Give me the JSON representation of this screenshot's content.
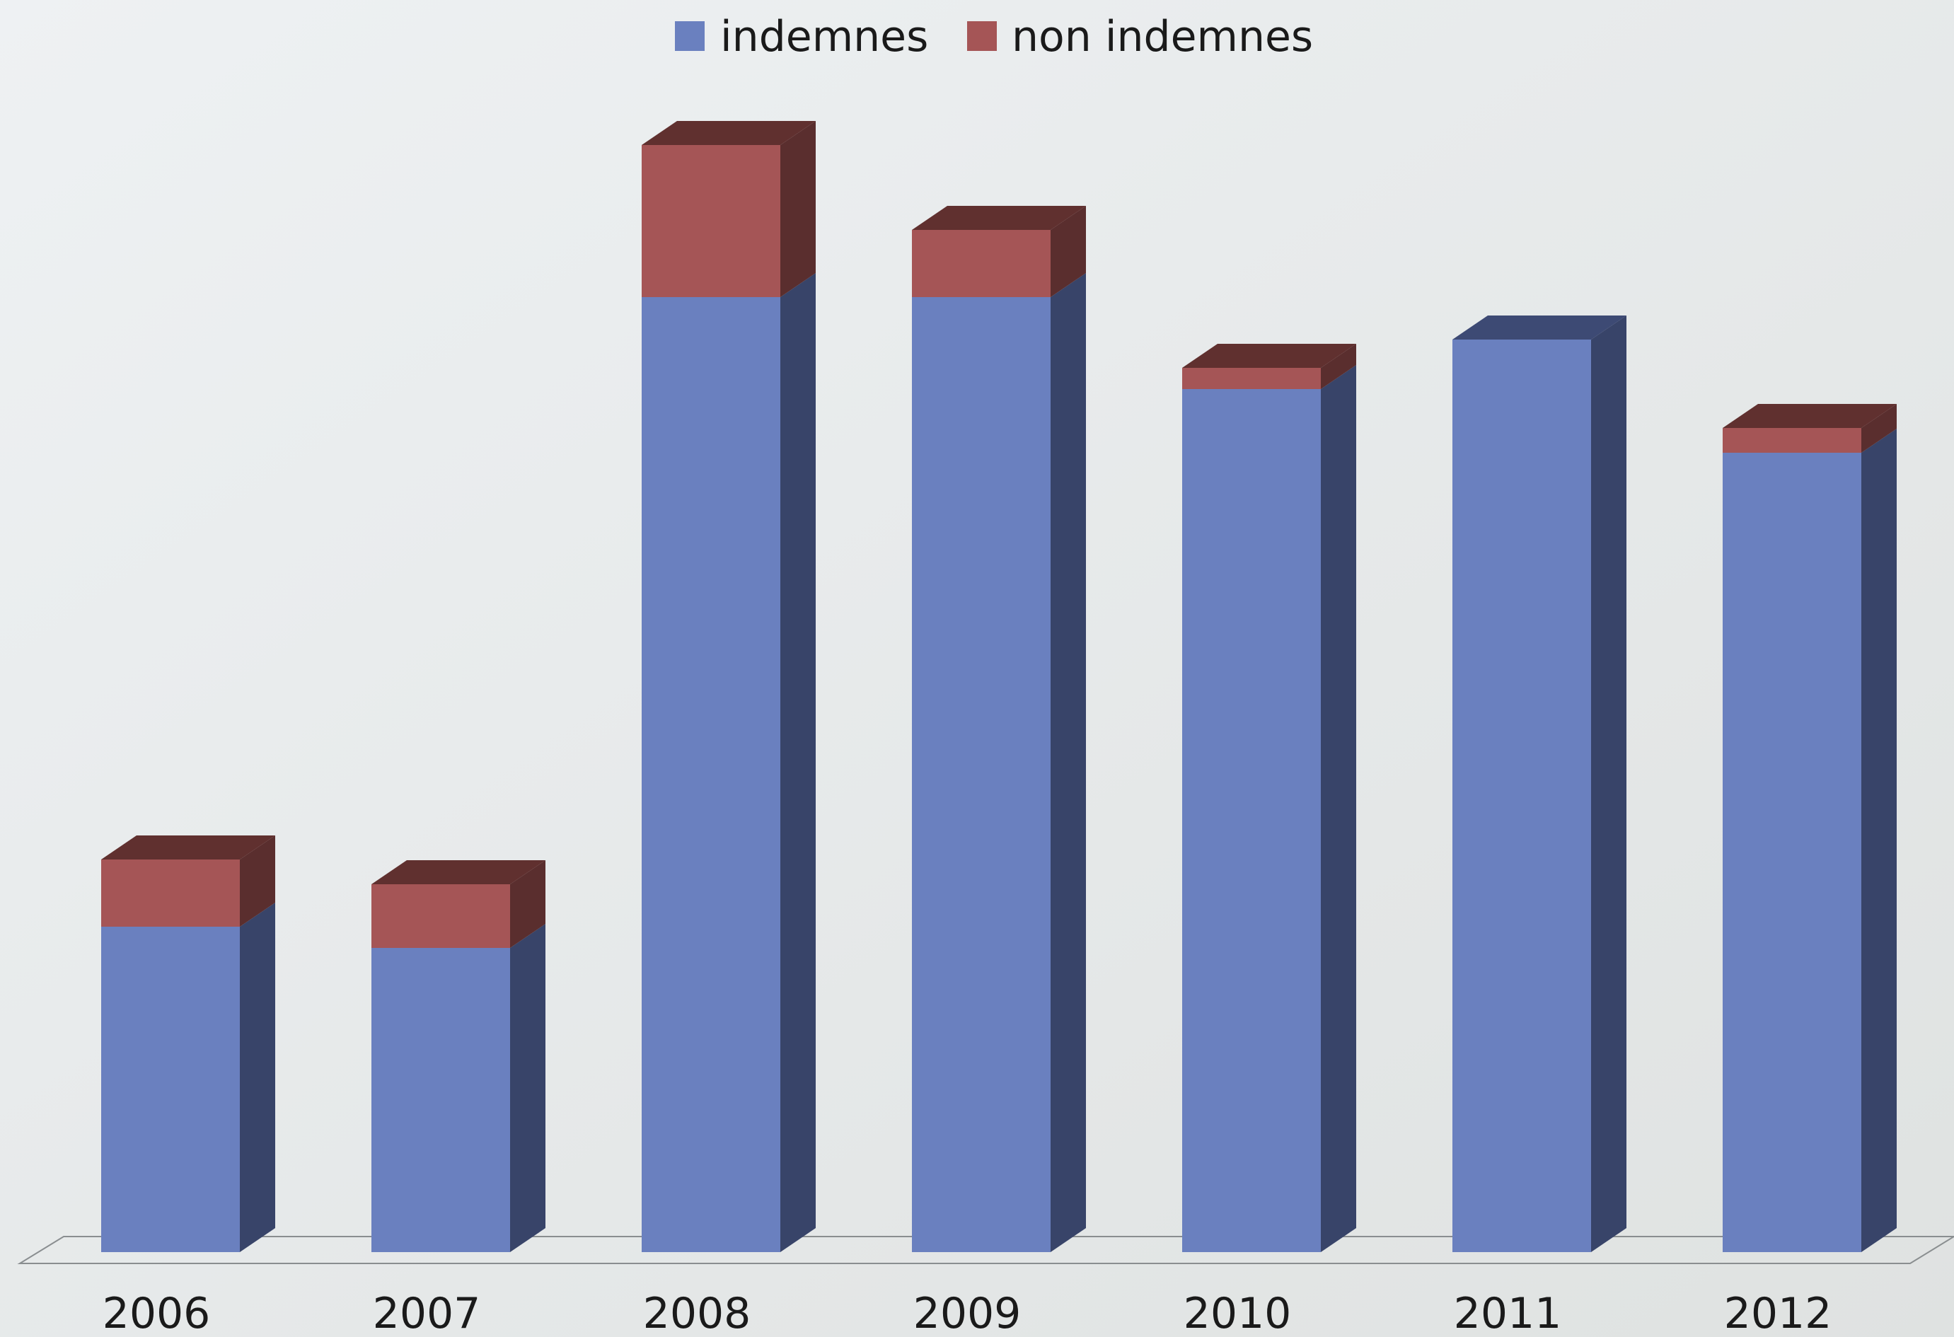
{
  "colors": {
    "background_light": "#eef1f3",
    "background_dark": "#dfe2e1",
    "indemnes_front": "#6a80bf",
    "indemnes_side": "#384469",
    "indemnes_top": "#3d4a74",
    "non_indemnes_front": "#a55556",
    "non_indemnes_side": "#5a2e2e",
    "non_indemnes_top": "#60302f",
    "floor_line": "#8a8e90"
  },
  "chart_data": {
    "type": "bar",
    "stacked": true,
    "style_3d": true,
    "categories": [
      "2006",
      "2007",
      "2008",
      "2009",
      "2010",
      "2011",
      "2012"
    ],
    "series": [
      {
        "name": "indemnes",
        "values": [
          46,
          43,
          135,
          135,
          122,
          129,
          113
        ],
        "color": "#6a80bf"
      },
      {
        "name": "non indemnes",
        "values": [
          9.5,
          9,
          21.5,
          9.5,
          3,
          0,
          3.5
        ],
        "color": "#a55556"
      }
    ],
    "legend": {
      "position": "top-center"
    },
    "grid": false,
    "ylim": [
      0,
      160
    ],
    "y_axis_labels_shown": false
  }
}
